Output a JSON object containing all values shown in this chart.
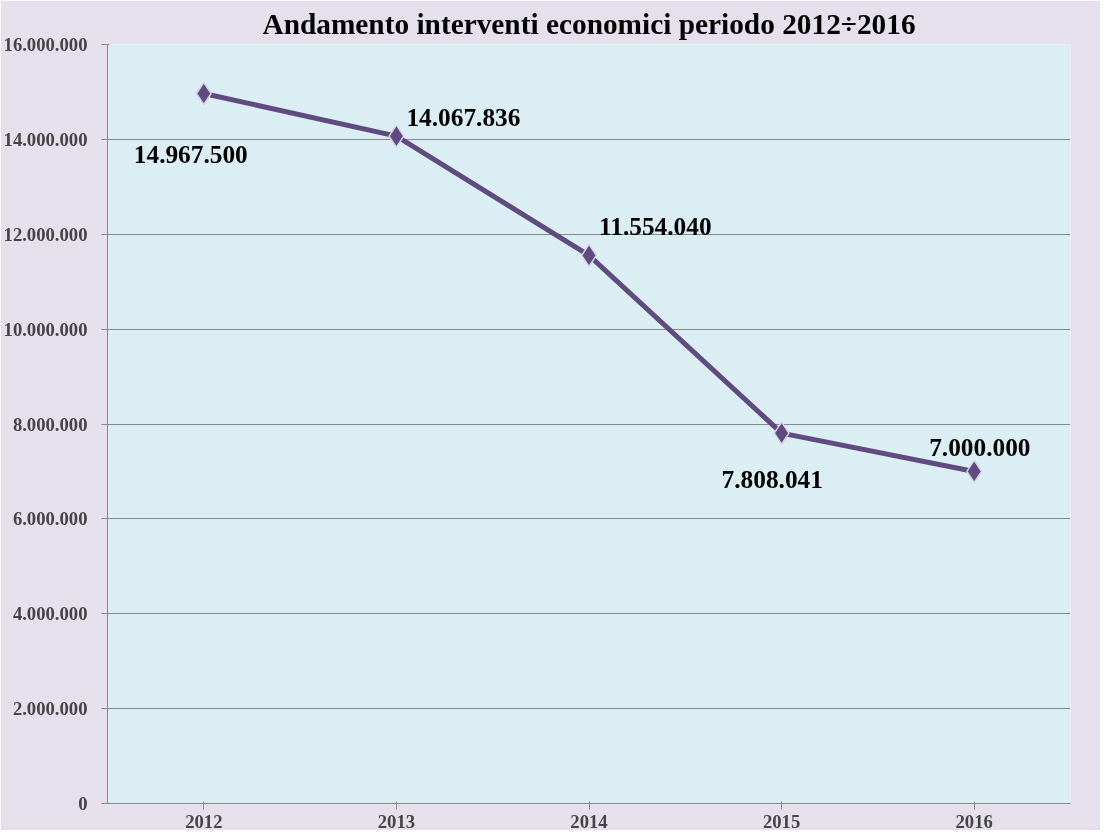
{
  "chart_data": {
    "type": "line",
    "title": "Andamento interventi economici periodo 2012÷2016",
    "categories": [
      "2012",
      "2013",
      "2014",
      "2015",
      "2016"
    ],
    "series": [
      {
        "color": "#5f4b80",
        "values": [
          14967500,
          14067836,
          11554040,
          7808041,
          7000000
        ],
        "value_labels": [
          "14.967.500",
          "14.067.836",
          "11.554.040",
          "7.808.041",
          "7.000.000"
        ]
      }
    ],
    "ylim": [
      0,
      16000000
    ],
    "yticks": [
      {
        "value": 0,
        "label": "0"
      },
      {
        "value": 2000000,
        "label": "2.000.000"
      },
      {
        "value": 4000000,
        "label": "4.000.000"
      },
      {
        "value": 6000000,
        "label": "6.000.000"
      },
      {
        "value": 8000000,
        "label": "8.000.000"
      },
      {
        "value": 10000000,
        "label": "10.000.000"
      },
      {
        "value": 12000000,
        "label": "12.000.000"
      },
      {
        "value": 14000000,
        "label": "14.000.000"
      },
      {
        "value": 16000000,
        "label": "16.000.000"
      }
    ],
    "grid": "y",
    "marker": "diamond",
    "line_style": "solid"
  }
}
